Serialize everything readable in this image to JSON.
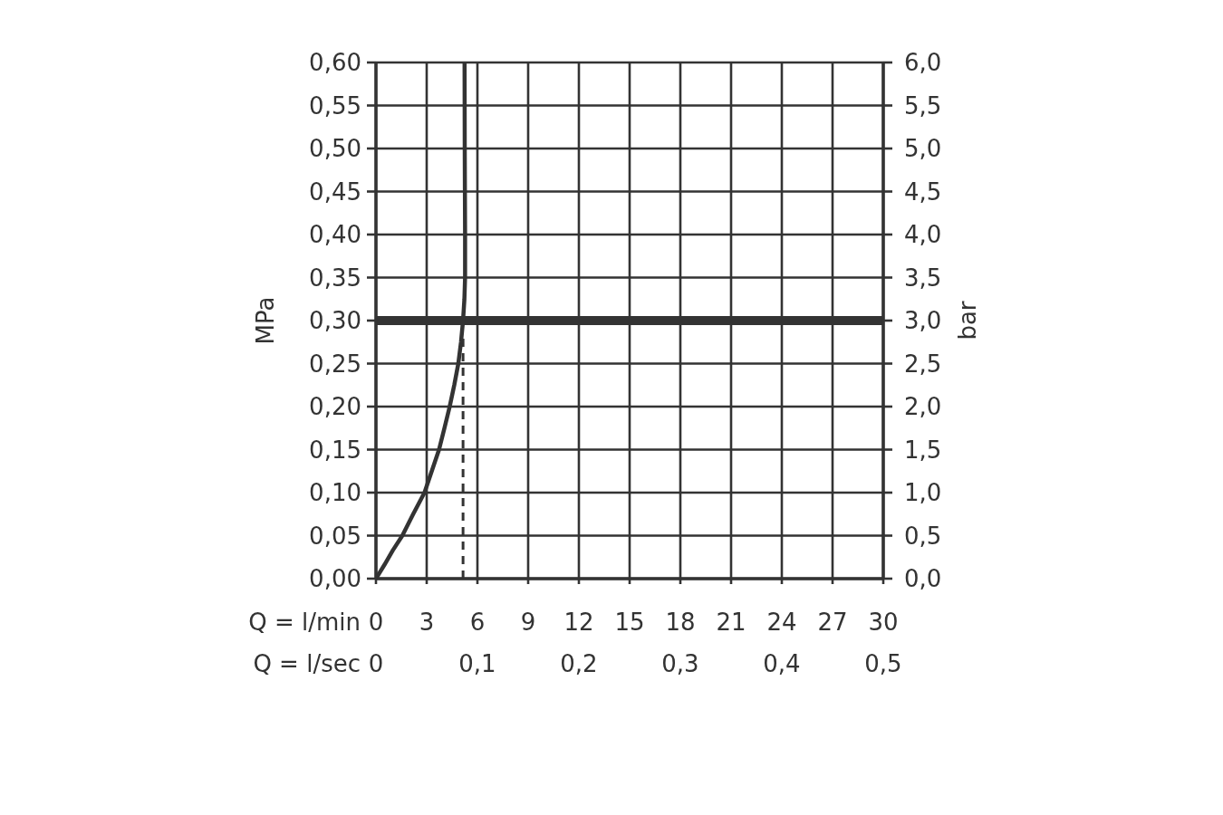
{
  "chart_data": {
    "type": "line",
    "xlabel": "Q = l/min",
    "x2label": "Q = l/sec",
    "ylabel": "MPa",
    "y2label": "bar",
    "xlim": [
      0,
      30
    ],
    "xticks": [
      0,
      3,
      6,
      9,
      12,
      15,
      18,
      21,
      24,
      27,
      30
    ],
    "x2lim": [
      0,
      0.5
    ],
    "x2ticks": [
      0,
      {
        "value": 0.1,
        "label": "0,1"
      },
      {
        "value": 0.2,
        "label": "0,2"
      },
      {
        "value": 0.3,
        "label": "0,3"
      },
      {
        "value": 0.4,
        "label": "0,4"
      },
      {
        "value": 0.5,
        "label": "0,5"
      }
    ],
    "ylim": [
      0,
      0.6
    ],
    "yticks": [
      {
        "value": 0,
        "label": "0,00"
      },
      {
        "value": 0.05,
        "label": "0,05"
      },
      {
        "value": 0.1,
        "label": "0,10"
      },
      {
        "value": 0.15,
        "label": "0,15"
      },
      {
        "value": 0.2,
        "label": "0,20"
      },
      {
        "value": 0.25,
        "label": "0,25"
      },
      {
        "value": 0.3,
        "label": "0,30"
      },
      {
        "value": 0.35,
        "label": "0,35"
      },
      {
        "value": 0.4,
        "label": "0,40"
      },
      {
        "value": 0.45,
        "label": "0,45"
      },
      {
        "value": 0.5,
        "label": "0,50"
      },
      {
        "value": 0.55,
        "label": "0,55"
      },
      {
        "value": 0.6,
        "label": "0,60"
      }
    ],
    "y2lim": [
      0,
      6
    ],
    "y2ticks": [
      {
        "value": 0,
        "label": "0,0"
      },
      {
        "value": 0.5,
        "label": "0,5"
      },
      {
        "value": 1,
        "label": "1,0"
      },
      {
        "value": 1.5,
        "label": "1,5"
      },
      {
        "value": 2,
        "label": "2,0"
      },
      {
        "value": 2.5,
        "label": "2,5"
      },
      {
        "value": 3,
        "label": "3,0"
      },
      {
        "value": 3.5,
        "label": "3,5"
      },
      {
        "value": 4,
        "label": "4,0"
      },
      {
        "value": 4.5,
        "label": "4,5"
      },
      {
        "value": 5,
        "label": "5,0"
      },
      {
        "value": 5.5,
        "label": "5,5"
      },
      {
        "value": 6,
        "label": "6,0"
      }
    ],
    "grid": true,
    "series": [
      {
        "color": "#333333",
        "x": [
          0,
          0.5,
          1,
          1.56,
          2.2,
          2.87,
          3.3,
          3.73,
          4.05,
          4.36,
          4.63,
          4.87,
          5.03,
          5.15,
          5.23,
          5.27,
          5.27,
          5.26,
          5.25,
          5.24
        ],
        "values": [
          0,
          0.016,
          0.033,
          0.05,
          0.075,
          0.1,
          0.125,
          0.15,
          0.175,
          0.2,
          0.225,
          0.25,
          0.275,
          0.3,
          0.325,
          0.35,
          0.4,
          0.45,
          0.5,
          0.6
        ]
      },
      {
        "color": "#333333",
        "line_style": "dashed",
        "x": [
          5.15,
          5.15
        ],
        "values": [
          0,
          0.28
        ]
      }
    ],
    "ref_lines": [
      {
        "axis": "y",
        "value": 0.3,
        "color": "#333333"
      }
    ]
  }
}
